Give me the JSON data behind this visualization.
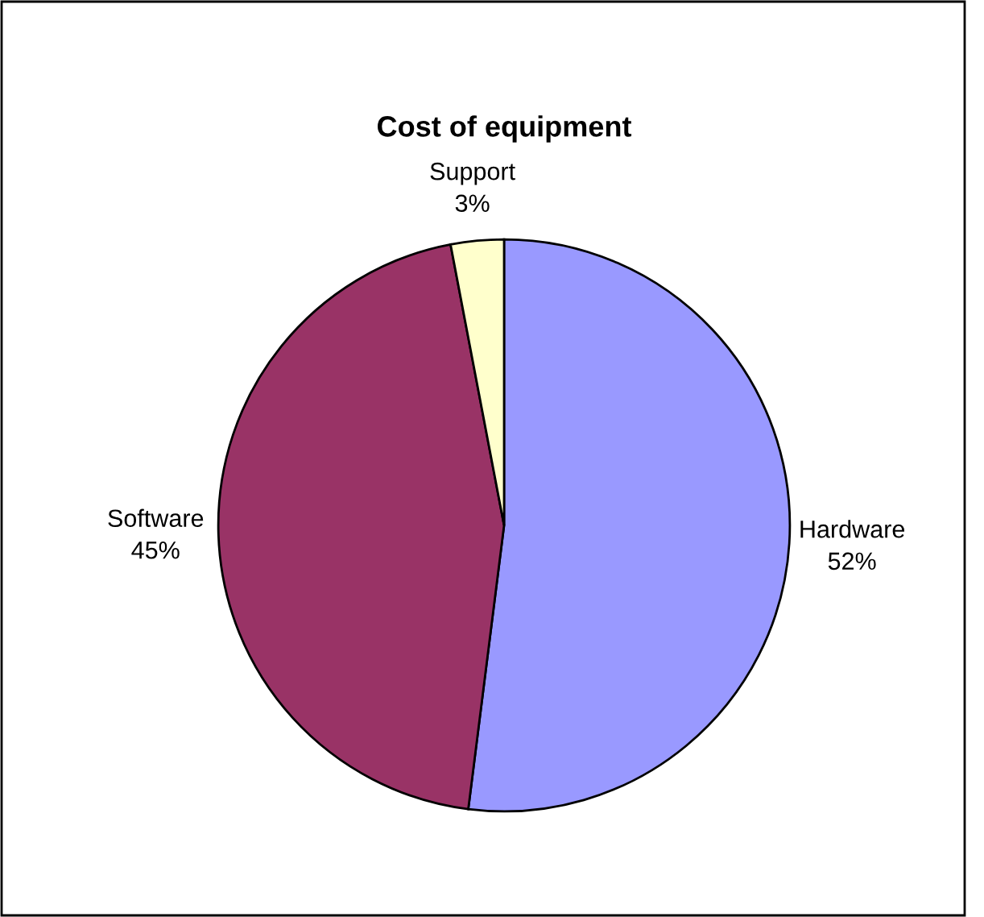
{
  "chart_data": {
    "type": "pie",
    "title": "Cost of equipment",
    "categories": [
      "Hardware",
      "Software",
      "Support"
    ],
    "values": [
      52,
      45,
      3
    ],
    "colors": [
      "#9999ff",
      "#993366",
      "#ffffcc"
    ],
    "value_labels": [
      "52%",
      "45%",
      "3%"
    ],
    "legend": false
  }
}
